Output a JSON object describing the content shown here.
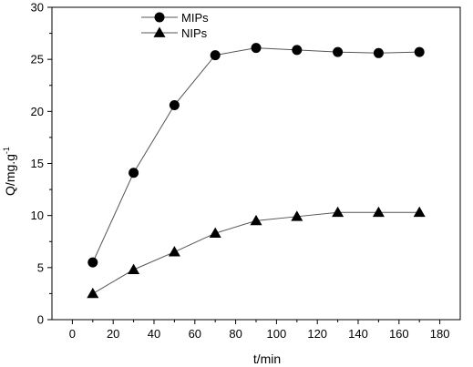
{
  "chart_data": {
    "type": "line",
    "xlabel": "t/min",
    "ylabel_main": "Q/mg.g",
    "ylabel_sup": "-1",
    "xlim": [
      -10,
      190
    ],
    "ylim": [
      0,
      30
    ],
    "x_ticks": [
      0,
      20,
      40,
      60,
      80,
      100,
      120,
      140,
      160,
      180
    ],
    "y_ticks": [
      0,
      5,
      10,
      15,
      20,
      25,
      30
    ],
    "x": [
      10,
      30,
      50,
      70,
      90,
      110,
      130,
      150,
      170
    ],
    "series": [
      {
        "name": "MIPs",
        "marker": "circle",
        "values": [
          5.5,
          14.1,
          20.6,
          25.4,
          26.1,
          25.9,
          25.7,
          25.6,
          25.7
        ]
      },
      {
        "name": "NIPs",
        "marker": "triangle",
        "values": [
          2.5,
          4.8,
          6.5,
          8.3,
          9.5,
          9.9,
          10.3,
          10.3,
          10.3
        ]
      }
    ],
    "legend_position": "top-left",
    "grid": false,
    "colors": {
      "line": "#555555",
      "marker": "#000000",
      "axis": "#000000"
    }
  }
}
